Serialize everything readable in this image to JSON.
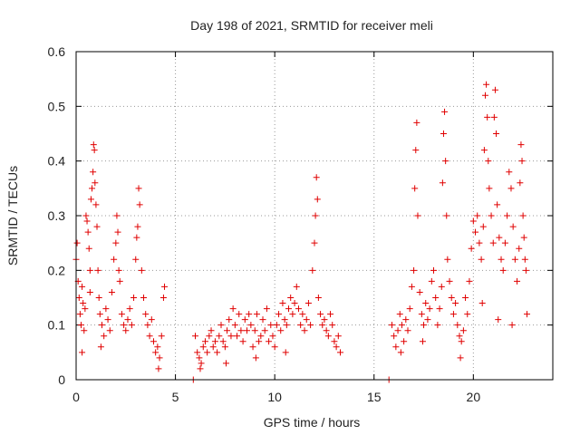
{
  "chart_data": {
    "type": "scatter",
    "title": "Day 198 of 2021, SRMTID for receiver meli",
    "xlabel": "GPS time / hours",
    "ylabel": "SRMTID / TECUs",
    "xlim": [
      0,
      24
    ],
    "ylim": [
      0,
      0.6
    ],
    "xticks": [
      0,
      5,
      10,
      15,
      20
    ],
    "xtick_labels": [
      "0",
      "5",
      "10",
      "15",
      "20"
    ],
    "yticks": [
      0,
      0.1,
      0.2,
      0.3,
      0.4,
      0.5,
      0.6
    ],
    "ytick_labels": [
      "0",
      "0.1",
      "0.2",
      "0.3",
      "0.4",
      "0.5",
      "0.6"
    ],
    "grid": true,
    "color": "#e00000",
    "marker": "plus",
    "series": [
      {
        "name": "SRMTID",
        "points": [
          [
            0.0,
            0.22
          ],
          [
            0.05,
            0.25
          ],
          [
            0.1,
            0.18
          ],
          [
            0.15,
            0.15
          ],
          [
            0.2,
            0.12
          ],
          [
            0.25,
            0.1
          ],
          [
            0.3,
            0.17
          ],
          [
            0.35,
            0.14
          ],
          [
            0.4,
            0.09
          ],
          [
            0.45,
            0.13
          ],
          [
            0.5,
            0.3
          ],
          [
            0.55,
            0.29
          ],
          [
            0.6,
            0.27
          ],
          [
            0.65,
            0.24
          ],
          [
            0.7,
            0.2
          ],
          [
            0.75,
            0.33
          ],
          [
            0.8,
            0.35
          ],
          [
            0.85,
            0.38
          ],
          [
            0.88,
            0.43
          ],
          [
            0.92,
            0.42
          ],
          [
            0.95,
            0.36
          ],
          [
            1.0,
            0.32
          ],
          [
            1.05,
            0.28
          ],
          [
            1.1,
            0.2
          ],
          [
            1.15,
            0.15
          ],
          [
            1.2,
            0.12
          ],
          [
            1.3,
            0.1
          ],
          [
            1.4,
            0.08
          ],
          [
            1.5,
            0.13
          ],
          [
            1.6,
            0.11
          ],
          [
            1.7,
            0.09
          ],
          [
            1.8,
            0.16
          ],
          [
            1.9,
            0.22
          ],
          [
            2.0,
            0.25
          ],
          [
            2.05,
            0.3
          ],
          [
            2.1,
            0.27
          ],
          [
            2.2,
            0.18
          ],
          [
            2.3,
            0.12
          ],
          [
            2.4,
            0.1
          ],
          [
            2.5,
            0.09
          ],
          [
            2.6,
            0.11
          ],
          [
            2.7,
            0.13
          ],
          [
            2.8,
            0.1
          ],
          [
            2.9,
            0.15
          ],
          [
            3.0,
            0.22
          ],
          [
            3.1,
            0.28
          ],
          [
            3.15,
            0.35
          ],
          [
            3.2,
            0.32
          ],
          [
            3.3,
            0.2
          ],
          [
            3.4,
            0.15
          ],
          [
            3.5,
            0.12
          ],
          [
            3.6,
            0.1
          ],
          [
            3.7,
            0.08
          ],
          [
            3.8,
            0.11
          ],
          [
            3.9,
            0.07
          ],
          [
            4.0,
            0.05
          ],
          [
            4.1,
            0.06
          ],
          [
            4.2,
            0.04
          ],
          [
            4.3,
            0.08
          ],
          [
            4.4,
            0.15
          ],
          [
            4.45,
            0.17
          ],
          [
            0.3,
            0.05
          ],
          [
            0.7,
            0.16
          ],
          [
            1.25,
            0.06
          ],
          [
            2.15,
            0.2
          ],
          [
            3.05,
            0.26
          ],
          [
            4.15,
            0.02
          ],
          [
            5.9,
            0.0
          ],
          [
            6.0,
            0.08
          ],
          [
            6.1,
            0.05
          ],
          [
            6.2,
            0.04
          ],
          [
            6.3,
            0.03
          ],
          [
            6.4,
            0.06
          ],
          [
            6.5,
            0.07
          ],
          [
            6.6,
            0.05
          ],
          [
            6.7,
            0.08
          ],
          [
            6.8,
            0.09
          ],
          [
            6.9,
            0.06
          ],
          [
            7.0,
            0.07
          ],
          [
            7.1,
            0.05
          ],
          [
            7.2,
            0.08
          ],
          [
            7.3,
            0.1
          ],
          [
            7.4,
            0.07
          ],
          [
            7.5,
            0.06
          ],
          [
            7.6,
            0.09
          ],
          [
            7.7,
            0.11
          ],
          [
            7.8,
            0.08
          ],
          [
            7.9,
            0.13
          ],
          [
            8.0,
            0.1
          ],
          [
            8.1,
            0.08
          ],
          [
            8.2,
            0.12
          ],
          [
            8.3,
            0.09
          ],
          [
            8.4,
            0.07
          ],
          [
            8.5,
            0.11
          ],
          [
            8.6,
            0.09
          ],
          [
            8.7,
            0.12
          ],
          [
            8.8,
            0.1
          ],
          [
            8.9,
            0.06
          ],
          [
            9.0,
            0.09
          ],
          [
            9.1,
            0.12
          ],
          [
            9.2,
            0.07
          ],
          [
            9.3,
            0.08
          ],
          [
            9.4,
            0.11
          ],
          [
            9.5,
            0.09
          ],
          [
            9.6,
            0.13
          ],
          [
            9.7,
            0.07
          ],
          [
            9.8,
            0.1
          ],
          [
            9.9,
            0.08
          ],
          [
            10.0,
            0.06
          ],
          [
            10.1,
            0.1
          ],
          [
            10.2,
            0.12
          ],
          [
            10.3,
            0.09
          ],
          [
            10.4,
            0.14
          ],
          [
            10.5,
            0.11
          ],
          [
            10.6,
            0.1
          ],
          [
            10.7,
            0.13
          ],
          [
            10.8,
            0.15
          ],
          [
            10.9,
            0.12
          ],
          [
            11.0,
            0.14
          ],
          [
            11.1,
            0.17
          ],
          [
            11.2,
            0.13
          ],
          [
            11.3,
            0.1
          ],
          [
            11.4,
            0.12
          ],
          [
            11.5,
            0.09
          ],
          [
            11.6,
            0.11
          ],
          [
            11.7,
            0.14
          ],
          [
            11.8,
            0.1
          ],
          [
            11.9,
            0.2
          ],
          [
            12.0,
            0.25
          ],
          [
            12.05,
            0.3
          ],
          [
            12.1,
            0.37
          ],
          [
            12.15,
            0.33
          ],
          [
            12.2,
            0.15
          ],
          [
            12.3,
            0.12
          ],
          [
            12.4,
            0.1
          ],
          [
            12.5,
            0.11
          ],
          [
            12.6,
            0.09
          ],
          [
            12.7,
            0.08
          ],
          [
            12.8,
            0.12
          ],
          [
            12.9,
            0.1
          ],
          [
            13.0,
            0.07
          ],
          [
            13.1,
            0.06
          ],
          [
            13.2,
            0.08
          ],
          [
            13.3,
            0.05
          ],
          [
            6.25,
            0.02
          ],
          [
            7.55,
            0.03
          ],
          [
            9.05,
            0.04
          ],
          [
            10.55,
            0.05
          ],
          [
            15.75,
            0.0
          ],
          [
            15.9,
            0.1
          ],
          [
            16.0,
            0.08
          ],
          [
            16.1,
            0.06
          ],
          [
            16.2,
            0.09
          ],
          [
            16.3,
            0.12
          ],
          [
            16.4,
            0.1
          ],
          [
            16.5,
            0.07
          ],
          [
            16.6,
            0.11
          ],
          [
            16.7,
            0.09
          ],
          [
            16.8,
            0.13
          ],
          [
            16.9,
            0.17
          ],
          [
            17.0,
            0.2
          ],
          [
            17.05,
            0.35
          ],
          [
            17.1,
            0.42
          ],
          [
            17.15,
            0.47
          ],
          [
            17.2,
            0.3
          ],
          [
            17.3,
            0.16
          ],
          [
            17.4,
            0.12
          ],
          [
            17.5,
            0.1
          ],
          [
            17.6,
            0.14
          ],
          [
            17.7,
            0.11
          ],
          [
            17.8,
            0.13
          ],
          [
            17.9,
            0.18
          ],
          [
            18.0,
            0.2
          ],
          [
            18.1,
            0.15
          ],
          [
            18.2,
            0.1
          ],
          [
            18.3,
            0.13
          ],
          [
            18.4,
            0.17
          ],
          [
            18.45,
            0.36
          ],
          [
            18.5,
            0.45
          ],
          [
            18.55,
            0.49
          ],
          [
            18.6,
            0.4
          ],
          [
            18.65,
            0.3
          ],
          [
            18.7,
            0.22
          ],
          [
            18.8,
            0.18
          ],
          [
            18.9,
            0.15
          ],
          [
            19.0,
            0.12
          ],
          [
            19.1,
            0.14
          ],
          [
            19.2,
            0.1
          ],
          [
            19.3,
            0.08
          ],
          [
            19.4,
            0.07
          ],
          [
            19.5,
            0.09
          ],
          [
            19.6,
            0.15
          ],
          [
            19.7,
            0.12
          ],
          [
            19.8,
            0.18
          ],
          [
            19.9,
            0.24
          ],
          [
            20.0,
            0.29
          ],
          [
            20.1,
            0.27
          ],
          [
            20.2,
            0.3
          ],
          [
            20.3,
            0.25
          ],
          [
            20.4,
            0.22
          ],
          [
            20.5,
            0.28
          ],
          [
            20.55,
            0.42
          ],
          [
            20.6,
            0.52
          ],
          [
            20.65,
            0.54
          ],
          [
            20.7,
            0.48
          ],
          [
            20.75,
            0.4
          ],
          [
            20.8,
            0.35
          ],
          [
            20.9,
            0.3
          ],
          [
            21.0,
            0.25
          ],
          [
            21.05,
            0.48
          ],
          [
            21.1,
            0.53
          ],
          [
            21.15,
            0.45
          ],
          [
            21.2,
            0.32
          ],
          [
            21.3,
            0.26
          ],
          [
            21.4,
            0.22
          ],
          [
            21.5,
            0.2
          ],
          [
            21.6,
            0.25
          ],
          [
            21.7,
            0.3
          ],
          [
            21.8,
            0.38
          ],
          [
            21.9,
            0.35
          ],
          [
            22.0,
            0.28
          ],
          [
            22.1,
            0.22
          ],
          [
            22.2,
            0.18
          ],
          [
            22.3,
            0.24
          ],
          [
            22.35,
            0.36
          ],
          [
            22.4,
            0.43
          ],
          [
            22.45,
            0.4
          ],
          [
            22.5,
            0.3
          ],
          [
            22.55,
            0.26
          ],
          [
            22.6,
            0.22
          ],
          [
            22.65,
            0.2
          ],
          [
            22.7,
            0.12
          ],
          [
            21.25,
            0.11
          ],
          [
            21.95,
            0.1
          ],
          [
            20.45,
            0.14
          ],
          [
            16.35,
            0.05
          ],
          [
            17.45,
            0.07
          ],
          [
            19.35,
            0.04
          ]
        ]
      }
    ]
  }
}
